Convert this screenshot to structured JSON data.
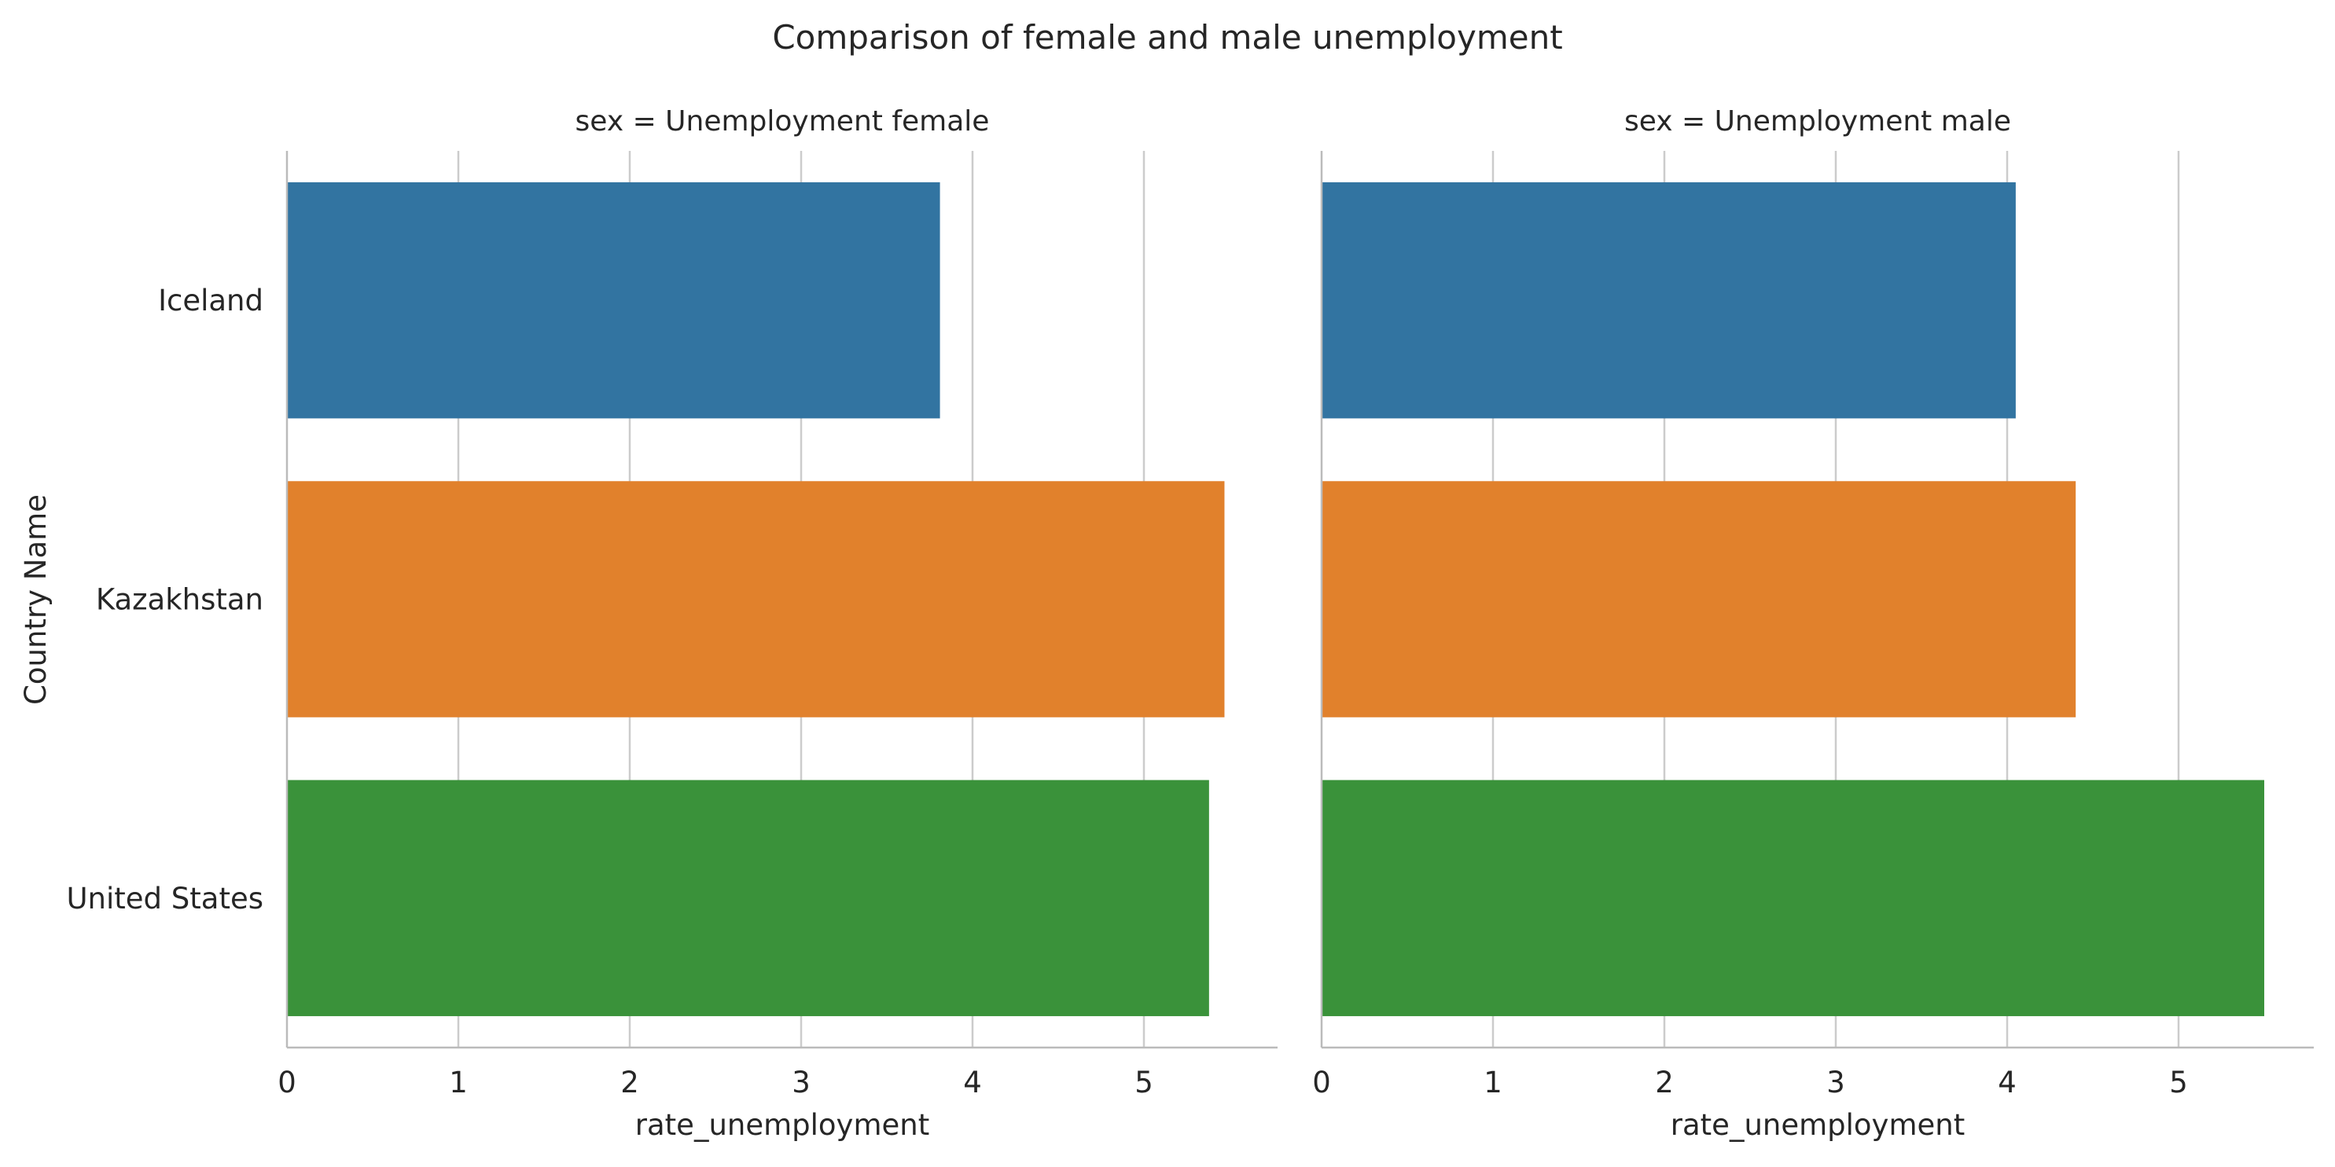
{
  "chart_data": {
    "type": "bar",
    "orientation": "horizontal",
    "title": "Comparison of female and male unemployment",
    "ylabel": "Country Name",
    "xlabel": "rate_unemployment",
    "categories": [
      "Iceland",
      "Kazakhstan",
      "United States"
    ],
    "colors": [
      "#3274a1",
      "#e1812c",
      "#3a923a"
    ],
    "xlim": [
      0,
      5.8
    ],
    "xticks": [
      0,
      1,
      2,
      3,
      4,
      5
    ],
    "grid": true,
    "facets": [
      {
        "title": "sex = Unemployment female",
        "values": [
          3.81,
          5.47,
          5.38
        ]
      },
      {
        "title": "sex = Unemployment male",
        "values": [
          4.05,
          4.4,
          5.5
        ]
      }
    ]
  }
}
